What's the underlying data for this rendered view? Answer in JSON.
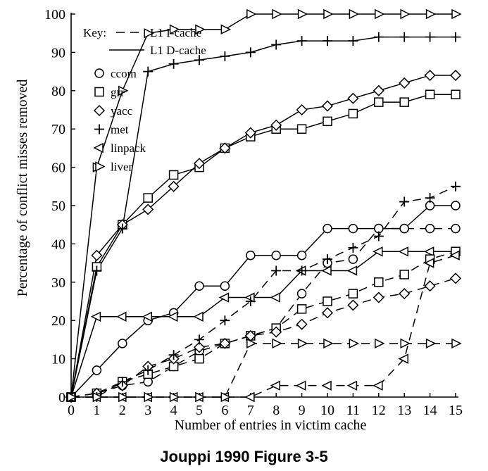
{
  "caption": "Jouppi 1990 Figure 3-5",
  "chart_data": {
    "type": "line",
    "xlabel": "Number of entries in victim cache",
    "ylabel": "Percentage of conflict misses removed",
    "xlim": [
      0,
      15
    ],
    "ylim": [
      0,
      100
    ],
    "x": [
      0,
      1,
      2,
      3,
      4,
      5,
      6,
      7,
      8,
      9,
      10,
      11,
      12,
      13,
      14,
      15
    ],
    "y_ticks": [
      0,
      10,
      20,
      30,
      40,
      50,
      60,
      70,
      80,
      90,
      100
    ],
    "legend": {
      "key_label": "Key:",
      "line_styles": [
        {
          "label": "L1 I-cache",
          "style": "dashed"
        },
        {
          "label": "L1 D-cache",
          "style": "solid"
        }
      ],
      "benchmarks": [
        {
          "label": "ccom",
          "marker": "circle"
        },
        {
          "label": "grr",
          "marker": "square"
        },
        {
          "label": "yacc",
          "marker": "diamond"
        },
        {
          "label": "met",
          "marker": "plus"
        },
        {
          "label": "linpack",
          "marker": "left-triangle"
        },
        {
          "label": "liver",
          "marker": "right-triangle"
        }
      ]
    },
    "series": [
      {
        "benchmark": "ccom",
        "cache": "L1 D-cache",
        "marker": "circle",
        "dash": false,
        "values": [
          0,
          7,
          14,
          20,
          22,
          29,
          29,
          37,
          37,
          37,
          44,
          44,
          44,
          44,
          50,
          50
        ]
      },
      {
        "benchmark": "grr",
        "cache": "L1 D-cache",
        "marker": "square",
        "dash": false,
        "values": [
          0,
          34,
          45,
          52,
          58,
          60,
          65,
          68,
          70,
          70,
          72,
          74,
          77,
          77,
          79,
          79
        ]
      },
      {
        "benchmark": "yacc",
        "cache": "L1 D-cache",
        "marker": "diamond",
        "dash": false,
        "values": [
          0,
          37,
          45,
          49,
          55,
          61,
          65,
          69,
          71,
          75,
          76,
          78,
          80,
          82,
          84,
          84
        ]
      },
      {
        "benchmark": "met",
        "cache": "L1 D-cache",
        "marker": "plus",
        "dash": false,
        "values": [
          0,
          33,
          44,
          85,
          87,
          88,
          89,
          90,
          92,
          93,
          93,
          93,
          94,
          94,
          94,
          94
        ]
      },
      {
        "benchmark": "linpack",
        "cache": "L1 D-cache",
        "marker": "left-triangle",
        "dash": false,
        "values": [
          0,
          21,
          21,
          21,
          21,
          21,
          26,
          26,
          26,
          33,
          33,
          33,
          38,
          38,
          38,
          38
        ]
      },
      {
        "benchmark": "liver",
        "cache": "L1 D-cache",
        "marker": "right-triangle",
        "dash": false,
        "values": [
          0,
          60,
          80,
          95,
          96,
          96,
          96,
          100,
          100,
          100,
          100,
          100,
          100,
          100,
          100,
          100
        ]
      },
      {
        "benchmark": "ccom",
        "cache": "L1 I-cache",
        "marker": "circle",
        "dash": true,
        "values": [
          0,
          1,
          3,
          4,
          8,
          12,
          14,
          16,
          18,
          27,
          35,
          36,
          44,
          44,
          44,
          44
        ]
      },
      {
        "benchmark": "grr",
        "cache": "L1 I-cache",
        "marker": "square",
        "dash": true,
        "values": [
          0,
          1,
          4,
          6,
          8,
          10,
          14,
          16,
          18,
          23,
          25,
          27,
          30,
          32,
          36,
          38
        ]
      },
      {
        "benchmark": "yacc",
        "cache": "L1 I-cache",
        "marker": "diamond",
        "dash": true,
        "values": [
          0,
          1,
          3,
          8,
          10,
          13,
          14,
          16,
          17,
          19,
          22,
          24,
          26,
          27,
          29,
          31
        ]
      },
      {
        "benchmark": "met",
        "cache": "L1 I-cache",
        "marker": "plus",
        "dash": true,
        "values": [
          0,
          0,
          4,
          7,
          11,
          15,
          20,
          25,
          33,
          33,
          36,
          39,
          42,
          51,
          52,
          55
        ]
      },
      {
        "benchmark": "linpack",
        "cache": "L1 I-cache",
        "marker": "left-triangle",
        "dash": true,
        "values": [
          0,
          0,
          0,
          0,
          0,
          0,
          0,
          0,
          3,
          3,
          3,
          3,
          3,
          10,
          35,
          37
        ]
      },
      {
        "benchmark": "liver",
        "cache": "L1 I-cache",
        "marker": "right-triangle",
        "dash": true,
        "values": [
          0,
          0,
          0,
          0,
          0,
          0,
          0,
          14,
          14,
          14,
          14,
          14,
          14,
          14,
          14,
          14
        ]
      }
    ]
  }
}
